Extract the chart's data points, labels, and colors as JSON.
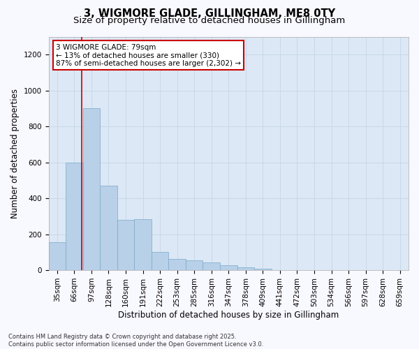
{
  "title_line1": "3, WIGMORE GLADE, GILLINGHAM, ME8 0TY",
  "title_line2": "Size of property relative to detached houses in Gillingham",
  "xlabel": "Distribution of detached houses by size in Gillingham",
  "ylabel": "Number of detached properties",
  "fig_bg_color": "#f8f8ff",
  "plot_bg_color": "#dce8f5",
  "bar_color": "#b8d0e8",
  "bar_edge_color": "#7aaac8",
  "categories": [
    "35sqm",
    "66sqm",
    "97sqm",
    "128sqm",
    "160sqm",
    "191sqm",
    "222sqm",
    "253sqm",
    "285sqm",
    "316sqm",
    "347sqm",
    "378sqm",
    "409sqm",
    "441sqm",
    "472sqm",
    "503sqm",
    "534sqm",
    "566sqm",
    "597sqm",
    "628sqm",
    "659sqm"
  ],
  "values": [
    155,
    600,
    900,
    470,
    280,
    285,
    100,
    63,
    55,
    42,
    28,
    15,
    8,
    0,
    0,
    0,
    0,
    0,
    0,
    0,
    0
  ],
  "ylim": [
    0,
    1300
  ],
  "yticks": [
    0,
    200,
    400,
    600,
    800,
    1000,
    1200
  ],
  "vline_pos": 1.42,
  "vline_color": "#cc0000",
  "annotation_text_line1": "3 WIGMORE GLADE: 79sqm",
  "annotation_text_line2": "← 13% of detached houses are smaller (330)",
  "annotation_text_line3": "87% of semi-detached houses are larger (2,302) →",
  "footnote": "Contains HM Land Registry data © Crown copyright and database right 2025.\nContains public sector information licensed under the Open Government Licence v3.0.",
  "grid_color": "#c8d8e8",
  "title_fontsize": 10.5,
  "subtitle_fontsize": 9.5,
  "tick_fontsize": 7.5,
  "label_fontsize": 8.5,
  "annot_fontsize": 7.5,
  "footnote_fontsize": 6.0
}
